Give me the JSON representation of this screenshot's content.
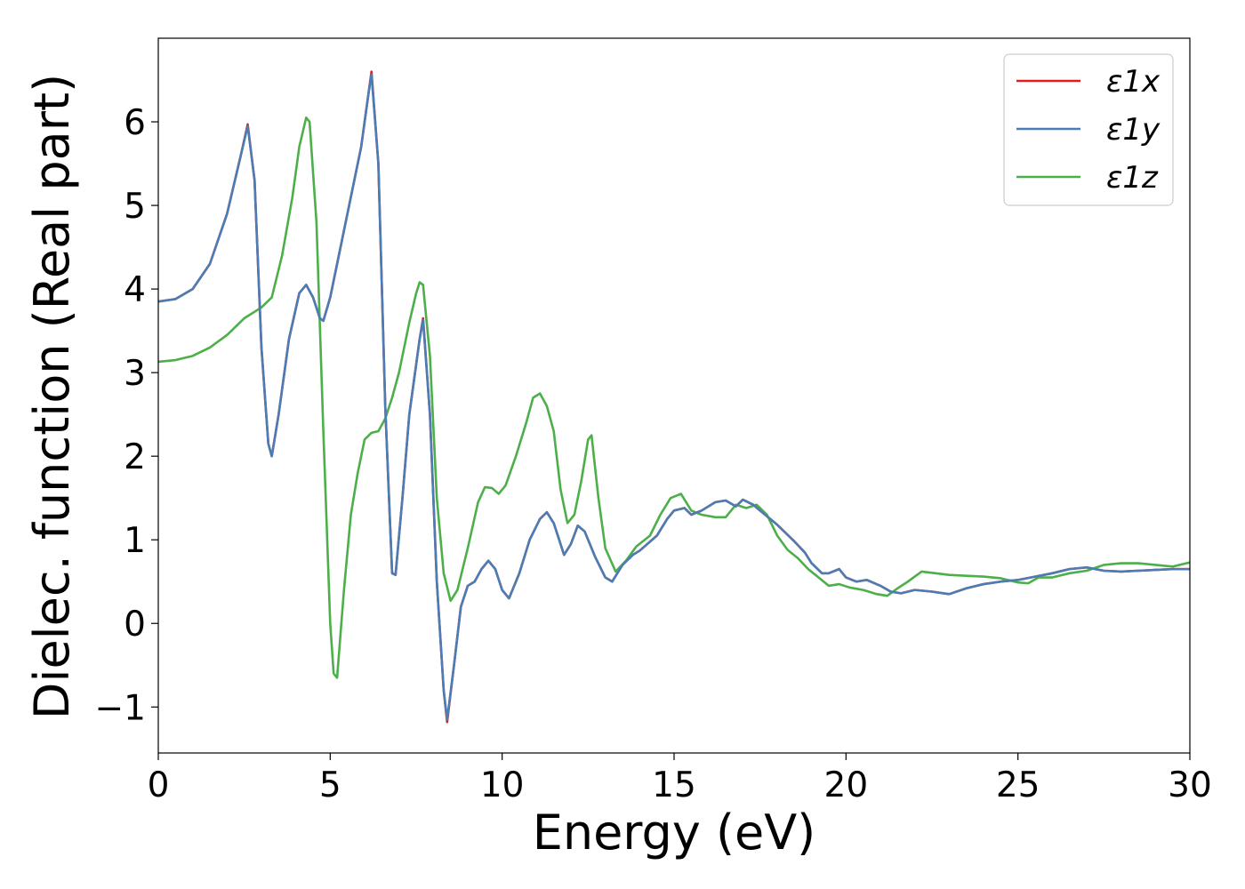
{
  "chart_data": {
    "type": "line",
    "title": "",
    "xlabel": "Energy (eV)",
    "ylabel": "Dielec. function (Real part)",
    "xlim": [
      0,
      30
    ],
    "ylim": [
      -1.55,
      7.0
    ],
    "x_ticks": [
      "0",
      "5",
      "10",
      "15",
      "20",
      "25",
      "30"
    ],
    "y_ticks": [
      "−1",
      "0",
      "1",
      "2",
      "3",
      "4",
      "5",
      "6"
    ],
    "grid": false,
    "legend_position": "top-right",
    "series": [
      {
        "name": "ε1x",
        "color": "#e41a1c",
        "points": [
          [
            0,
            3.85
          ],
          [
            0.5,
            3.88
          ],
          [
            1,
            4.0
          ],
          [
            1.5,
            4.3
          ],
          [
            2,
            4.9
          ],
          [
            2.4,
            5.6
          ],
          [
            2.6,
            5.97
          ],
          [
            2.8,
            5.3
          ],
          [
            3.0,
            3.3
          ],
          [
            3.2,
            2.15
          ],
          [
            3.3,
            2.0
          ],
          [
            3.5,
            2.5
          ],
          [
            3.8,
            3.4
          ],
          [
            4.1,
            3.95
          ],
          [
            4.3,
            4.05
          ],
          [
            4.5,
            3.9
          ],
          [
            4.7,
            3.65
          ],
          [
            4.8,
            3.62
          ],
          [
            5.0,
            3.9
          ],
          [
            5.5,
            4.9
          ],
          [
            5.9,
            5.7
          ],
          [
            6.1,
            6.3
          ],
          [
            6.2,
            6.6
          ],
          [
            6.4,
            5.5
          ],
          [
            6.6,
            2.6
          ],
          [
            6.8,
            0.6
          ],
          [
            6.9,
            0.58
          ],
          [
            7.1,
            1.5
          ],
          [
            7.3,
            2.5
          ],
          [
            7.6,
            3.4
          ],
          [
            7.7,
            3.65
          ],
          [
            7.9,
            2.5
          ],
          [
            8.1,
            0.5
          ],
          [
            8.3,
            -0.8
          ],
          [
            8.4,
            -1.18
          ],
          [
            8.6,
            -0.5
          ],
          [
            8.8,
            0.2
          ],
          [
            9.0,
            0.45
          ],
          [
            9.2,
            0.5
          ],
          [
            9.4,
            0.65
          ],
          [
            9.6,
            0.75
          ],
          [
            9.8,
            0.65
          ],
          [
            10.0,
            0.4
          ],
          [
            10.2,
            0.3
          ],
          [
            10.5,
            0.6
          ],
          [
            10.8,
            1.0
          ],
          [
            11.1,
            1.25
          ],
          [
            11.3,
            1.33
          ],
          [
            11.5,
            1.2
          ],
          [
            11.8,
            0.82
          ],
          [
            12.0,
            0.95
          ],
          [
            12.2,
            1.17
          ],
          [
            12.4,
            1.1
          ],
          [
            12.7,
            0.8
          ],
          [
            13.0,
            0.55
          ],
          [
            13.2,
            0.5
          ],
          [
            13.5,
            0.7
          ],
          [
            13.8,
            0.82
          ],
          [
            14.0,
            0.87
          ],
          [
            14.5,
            1.05
          ],
          [
            14.8,
            1.25
          ],
          [
            15.0,
            1.35
          ],
          [
            15.3,
            1.38
          ],
          [
            15.5,
            1.3
          ],
          [
            15.8,
            1.35
          ],
          [
            16.2,
            1.45
          ],
          [
            16.5,
            1.47
          ],
          [
            16.8,
            1.4
          ],
          [
            17.0,
            1.48
          ],
          [
            17.3,
            1.42
          ],
          [
            17.5,
            1.35
          ],
          [
            18.0,
            1.18
          ],
          [
            18.5,
            0.98
          ],
          [
            18.8,
            0.85
          ],
          [
            19.0,
            0.72
          ],
          [
            19.3,
            0.6
          ],
          [
            19.5,
            0.6
          ],
          [
            19.8,
            0.65
          ],
          [
            20.0,
            0.55
          ],
          [
            20.3,
            0.5
          ],
          [
            20.6,
            0.52
          ],
          [
            21.0,
            0.45
          ],
          [
            21.3,
            0.38
          ],
          [
            21.6,
            0.36
          ],
          [
            22.0,
            0.4
          ],
          [
            22.5,
            0.38
          ],
          [
            23.0,
            0.35
          ],
          [
            23.5,
            0.42
          ],
          [
            24.0,
            0.47
          ],
          [
            24.5,
            0.5
          ],
          [
            25.0,
            0.52
          ],
          [
            25.5,
            0.56
          ],
          [
            26.0,
            0.6
          ],
          [
            26.5,
            0.65
          ],
          [
            27.0,
            0.67
          ],
          [
            27.5,
            0.63
          ],
          [
            28.0,
            0.62
          ],
          [
            28.5,
            0.63
          ],
          [
            29.0,
            0.64
          ],
          [
            29.5,
            0.65
          ],
          [
            30.0,
            0.65
          ]
        ]
      },
      {
        "name": "ε1y",
        "color": "#4a7db5",
        "points": [
          [
            0,
            3.85
          ],
          [
            0.5,
            3.88
          ],
          [
            1,
            4.0
          ],
          [
            1.5,
            4.3
          ],
          [
            2,
            4.9
          ],
          [
            2.4,
            5.6
          ],
          [
            2.6,
            5.95
          ],
          [
            2.8,
            5.3
          ],
          [
            3.0,
            3.3
          ],
          [
            3.2,
            2.15
          ],
          [
            3.3,
            2.0
          ],
          [
            3.5,
            2.5
          ],
          [
            3.8,
            3.4
          ],
          [
            4.1,
            3.95
          ],
          [
            4.3,
            4.05
          ],
          [
            4.5,
            3.9
          ],
          [
            4.7,
            3.65
          ],
          [
            4.8,
            3.62
          ],
          [
            5.0,
            3.9
          ],
          [
            5.5,
            4.9
          ],
          [
            5.9,
            5.7
          ],
          [
            6.1,
            6.3
          ],
          [
            6.2,
            6.57
          ],
          [
            6.4,
            5.5
          ],
          [
            6.6,
            2.6
          ],
          [
            6.8,
            0.6
          ],
          [
            6.9,
            0.58
          ],
          [
            7.1,
            1.5
          ],
          [
            7.3,
            2.5
          ],
          [
            7.6,
            3.4
          ],
          [
            7.7,
            3.63
          ],
          [
            7.9,
            2.5
          ],
          [
            8.1,
            0.5
          ],
          [
            8.3,
            -0.8
          ],
          [
            8.4,
            -1.15
          ],
          [
            8.6,
            -0.5
          ],
          [
            8.8,
            0.2
          ],
          [
            9.0,
            0.45
          ],
          [
            9.2,
            0.5
          ],
          [
            9.4,
            0.65
          ],
          [
            9.6,
            0.75
          ],
          [
            9.8,
            0.65
          ],
          [
            10.0,
            0.4
          ],
          [
            10.2,
            0.3
          ],
          [
            10.5,
            0.6
          ],
          [
            10.8,
            1.0
          ],
          [
            11.1,
            1.25
          ],
          [
            11.3,
            1.33
          ],
          [
            11.5,
            1.2
          ],
          [
            11.8,
            0.82
          ],
          [
            12.0,
            0.95
          ],
          [
            12.2,
            1.17
          ],
          [
            12.4,
            1.1
          ],
          [
            12.7,
            0.8
          ],
          [
            13.0,
            0.55
          ],
          [
            13.2,
            0.5
          ],
          [
            13.5,
            0.7
          ],
          [
            13.8,
            0.82
          ],
          [
            14.0,
            0.87
          ],
          [
            14.5,
            1.05
          ],
          [
            14.8,
            1.25
          ],
          [
            15.0,
            1.35
          ],
          [
            15.3,
            1.38
          ],
          [
            15.5,
            1.3
          ],
          [
            15.8,
            1.35
          ],
          [
            16.2,
            1.45
          ],
          [
            16.5,
            1.47
          ],
          [
            16.8,
            1.4
          ],
          [
            17.0,
            1.48
          ],
          [
            17.3,
            1.42
          ],
          [
            17.5,
            1.35
          ],
          [
            18.0,
            1.18
          ],
          [
            18.5,
            0.98
          ],
          [
            18.8,
            0.85
          ],
          [
            19.0,
            0.72
          ],
          [
            19.3,
            0.6
          ],
          [
            19.5,
            0.6
          ],
          [
            19.8,
            0.65
          ],
          [
            20.0,
            0.55
          ],
          [
            20.3,
            0.5
          ],
          [
            20.6,
            0.52
          ],
          [
            21.0,
            0.45
          ],
          [
            21.3,
            0.38
          ],
          [
            21.6,
            0.36
          ],
          [
            22.0,
            0.4
          ],
          [
            22.5,
            0.38
          ],
          [
            23.0,
            0.35
          ],
          [
            23.5,
            0.42
          ],
          [
            24.0,
            0.47
          ],
          [
            24.5,
            0.5
          ],
          [
            25.0,
            0.52
          ],
          [
            25.5,
            0.56
          ],
          [
            26.0,
            0.6
          ],
          [
            26.5,
            0.65
          ],
          [
            27.0,
            0.67
          ],
          [
            27.5,
            0.63
          ],
          [
            28.0,
            0.62
          ],
          [
            28.5,
            0.63
          ],
          [
            29.0,
            0.64
          ],
          [
            29.5,
            0.65
          ],
          [
            30.0,
            0.65
          ]
        ]
      },
      {
        "name": "ε1z",
        "color": "#4daf4a",
        "points": [
          [
            0,
            3.13
          ],
          [
            0.5,
            3.15
          ],
          [
            1,
            3.2
          ],
          [
            1.5,
            3.3
          ],
          [
            2,
            3.45
          ],
          [
            2.5,
            3.65
          ],
          [
            3.0,
            3.78
          ],
          [
            3.3,
            3.9
          ],
          [
            3.6,
            4.4
          ],
          [
            3.9,
            5.1
          ],
          [
            4.1,
            5.7
          ],
          [
            4.3,
            6.05
          ],
          [
            4.4,
            6.0
          ],
          [
            4.6,
            4.8
          ],
          [
            4.8,
            2.3
          ],
          [
            5.0,
            0.0
          ],
          [
            5.1,
            -0.6
          ],
          [
            5.2,
            -0.65
          ],
          [
            5.4,
            0.4
          ],
          [
            5.6,
            1.3
          ],
          [
            5.8,
            1.8
          ],
          [
            6.0,
            2.2
          ],
          [
            6.2,
            2.28
          ],
          [
            6.4,
            2.3
          ],
          [
            6.6,
            2.45
          ],
          [
            6.8,
            2.7
          ],
          [
            7.0,
            3.0
          ],
          [
            7.3,
            3.6
          ],
          [
            7.5,
            3.95
          ],
          [
            7.6,
            4.08
          ],
          [
            7.7,
            4.05
          ],
          [
            7.9,
            3.2
          ],
          [
            8.1,
            1.5
          ],
          [
            8.3,
            0.6
          ],
          [
            8.5,
            0.27
          ],
          [
            8.7,
            0.4
          ],
          [
            9.0,
            0.9
          ],
          [
            9.3,
            1.45
          ],
          [
            9.5,
            1.63
          ],
          [
            9.7,
            1.62
          ],
          [
            9.9,
            1.55
          ],
          [
            10.1,
            1.65
          ],
          [
            10.4,
            2.0
          ],
          [
            10.7,
            2.4
          ],
          [
            10.9,
            2.7
          ],
          [
            11.1,
            2.75
          ],
          [
            11.3,
            2.6
          ],
          [
            11.5,
            2.3
          ],
          [
            11.7,
            1.6
          ],
          [
            11.9,
            1.2
          ],
          [
            12.1,
            1.3
          ],
          [
            12.3,
            1.7
          ],
          [
            12.5,
            2.2
          ],
          [
            12.6,
            2.25
          ],
          [
            12.8,
            1.5
          ],
          [
            13.0,
            0.9
          ],
          [
            13.3,
            0.62
          ],
          [
            13.6,
            0.75
          ],
          [
            13.9,
            0.92
          ],
          [
            14.3,
            1.05
          ],
          [
            14.6,
            1.3
          ],
          [
            14.9,
            1.5
          ],
          [
            15.2,
            1.55
          ],
          [
            15.5,
            1.35
          ],
          [
            15.8,
            1.3
          ],
          [
            16.2,
            1.27
          ],
          [
            16.5,
            1.27
          ],
          [
            16.8,
            1.42
          ],
          [
            17.1,
            1.38
          ],
          [
            17.4,
            1.42
          ],
          [
            17.7,
            1.3
          ],
          [
            18.0,
            1.05
          ],
          [
            18.3,
            0.88
          ],
          [
            18.6,
            0.78
          ],
          [
            18.9,
            0.65
          ],
          [
            19.2,
            0.55
          ],
          [
            19.5,
            0.45
          ],
          [
            19.8,
            0.47
          ],
          [
            20.1,
            0.43
          ],
          [
            20.5,
            0.4
          ],
          [
            20.9,
            0.35
          ],
          [
            21.2,
            0.33
          ],
          [
            21.5,
            0.42
          ],
          [
            21.8,
            0.5
          ],
          [
            22.2,
            0.62
          ],
          [
            22.6,
            0.6
          ],
          [
            23.0,
            0.58
          ],
          [
            23.5,
            0.57
          ],
          [
            24.0,
            0.56
          ],
          [
            24.5,
            0.54
          ],
          [
            25.0,
            0.49
          ],
          [
            25.3,
            0.48
          ],
          [
            25.6,
            0.55
          ],
          [
            26.0,
            0.55
          ],
          [
            26.5,
            0.6
          ],
          [
            27.0,
            0.63
          ],
          [
            27.5,
            0.7
          ],
          [
            28.0,
            0.72
          ],
          [
            28.5,
            0.72
          ],
          [
            29.0,
            0.7
          ],
          [
            29.5,
            0.68
          ],
          [
            30.0,
            0.73
          ]
        ]
      }
    ]
  }
}
